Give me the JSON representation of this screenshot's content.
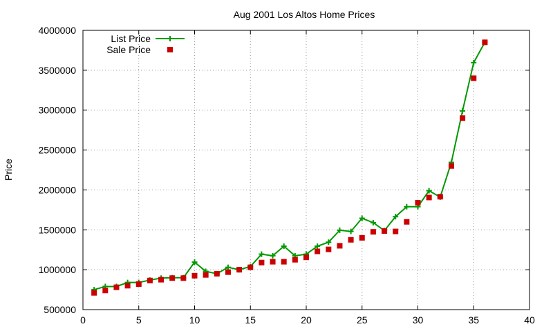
{
  "chart_data": {
    "type": "line",
    "title": "Aug 2001 Los Altos Home Prices",
    "xlabel": "",
    "ylabel": "Price",
    "xlim": [
      0,
      40
    ],
    "ylim": [
      500000,
      4000000
    ],
    "x_ticks": [
      "0",
      "5",
      "10",
      "15",
      "20",
      "25",
      "30",
      "35",
      "40"
    ],
    "y_ticks": [
      "500000",
      "1000000",
      "1500000",
      "2000000",
      "2500000",
      "3000000",
      "3500000",
      "4000000"
    ],
    "grid": true,
    "legend_position": "top-left",
    "series": [
      {
        "name": "List Price",
        "style": "line+cross-markers",
        "color": "#009900",
        "x": [
          1,
          2,
          3,
          4,
          5,
          6,
          7,
          8,
          9,
          10,
          11,
          12,
          13,
          14,
          15,
          16,
          17,
          18,
          19,
          20,
          21,
          22,
          23,
          24,
          25,
          26,
          27,
          28,
          29,
          30,
          31,
          32,
          33,
          34,
          35,
          36
        ],
        "y": [
          750000,
          790000,
          790000,
          840000,
          840000,
          870000,
          895000,
          900000,
          900000,
          1095000,
          980000,
          950000,
          1030000,
          1000000,
          1040000,
          1195000,
          1175000,
          1295000,
          1175000,
          1195000,
          1295000,
          1345000,
          1495000,
          1480000,
          1645000,
          1590000,
          1490000,
          1665000,
          1790000,
          1790000,
          1990000,
          1910000,
          2345000,
          2990000,
          3595000,
          3850000
        ]
      },
      {
        "name": "Sale Price",
        "style": "square-markers",
        "color": "#cc0000",
        "x": [
          1,
          2,
          3,
          4,
          5,
          6,
          7,
          8,
          9,
          10,
          11,
          12,
          13,
          14,
          15,
          16,
          17,
          18,
          19,
          20,
          21,
          22,
          23,
          24,
          25,
          26,
          27,
          28,
          29,
          30,
          31,
          32,
          33,
          34,
          35,
          36
        ],
        "y": [
          710000,
          740000,
          780000,
          800000,
          820000,
          865000,
          875000,
          895000,
          895000,
          925000,
          935000,
          950000,
          970000,
          1000000,
          1030000,
          1090000,
          1100000,
          1100000,
          1125000,
          1155000,
          1230000,
          1255000,
          1300000,
          1375000,
          1400000,
          1475000,
          1485000,
          1480000,
          1600000,
          1840000,
          1905000,
          1915000,
          2300000,
          2900000,
          3400000,
          3850000
        ]
      }
    ]
  }
}
